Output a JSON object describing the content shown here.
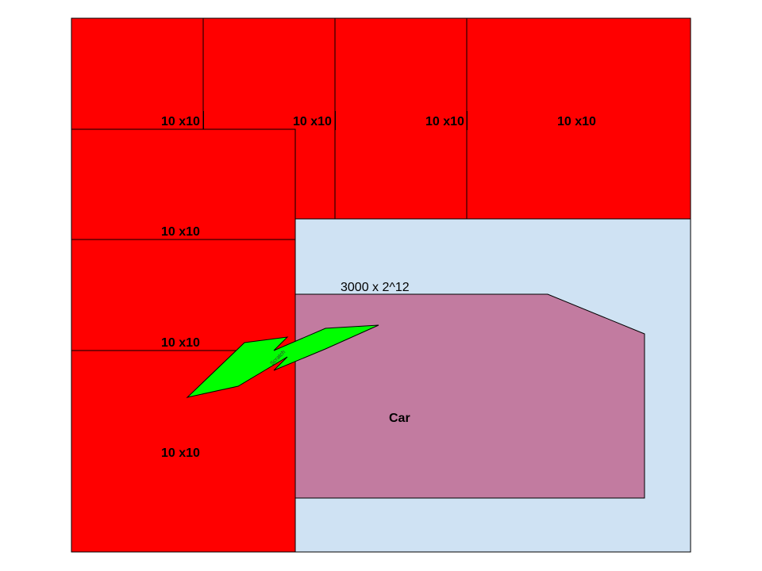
{
  "diagram": {
    "tiles": [
      {
        "label": "10 x10"
      },
      {
        "label": "10 x10"
      },
      {
        "label": "10 x10"
      },
      {
        "label": "10 x10"
      },
      {
        "label": "10 x10"
      },
      {
        "label": "10 x10"
      },
      {
        "label": "10 x10"
      }
    ],
    "area_label": "3000 x 2^12",
    "car_label": "Car",
    "scratch_label": "Scratch"
  },
  "colors": {
    "tile_fill": "#ff0000",
    "area_fill": "#cfe2f3",
    "car_fill": "#c27ba0",
    "scratch_fill": "#00ff00",
    "stroke": "#000000"
  }
}
